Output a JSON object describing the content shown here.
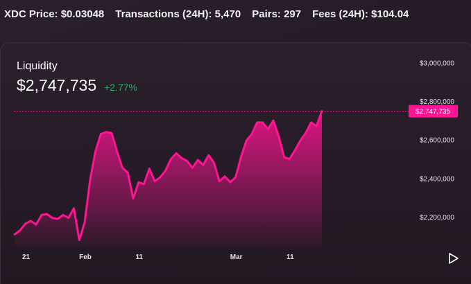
{
  "stats": [
    {
      "label": "XDC Price:",
      "value": "$0.03048"
    },
    {
      "label": "Transactions (24H):",
      "value": "5,470"
    },
    {
      "label": "Pairs:",
      "value": "297"
    },
    {
      "label": "Fees (24H):",
      "value": "$104.04"
    }
  ],
  "card": {
    "title": "Liquidity",
    "value": "$2,747,735",
    "change": "+2.77%"
  },
  "colors": {
    "line": "#ff1493",
    "positive": "#27ae60",
    "background": "#241a26"
  },
  "icons": {
    "play": "play-icon"
  },
  "chart_data": {
    "type": "area",
    "ylim": [
      2050000,
      3080000
    ],
    "y_ticks": [
      2200000,
      2400000,
      2600000,
      2800000,
      3000000
    ],
    "y_tick_labels": [
      "$2,200,000",
      "$2,400,000",
      "$2,600,000",
      "$2,800,000",
      "$3,000,000"
    ],
    "x_tick_labels": [
      {
        "label": "21",
        "index": 2
      },
      {
        "label": "Feb",
        "index": 13
      },
      {
        "label": "11",
        "index": 23
      },
      {
        "label": "Mar",
        "index": 41
      },
      {
        "label": "11",
        "index": 51
      }
    ],
    "current_value": 2747735,
    "current_label": "$2,747,735",
    "grid": false,
    "series": [
      {
        "values": [
          2110000,
          2130000,
          2165000,
          2180000,
          2160000,
          2210000,
          2215000,
          2195000,
          2190000,
          2210000,
          2195000,
          2245000,
          2080000,
          2170000,
          2390000,
          2540000,
          2630000,
          2640000,
          2635000,
          2540000,
          2455000,
          2430000,
          2295000,
          2380000,
          2370000,
          2450000,
          2385000,
          2405000,
          2440000,
          2500000,
          2530000,
          2505000,
          2490000,
          2455000,
          2495000,
          2470000,
          2520000,
          2480000,
          2385000,
          2410000,
          2380000,
          2405000,
          2510000,
          2595000,
          2630000,
          2690000,
          2690000,
          2655000,
          2700000,
          2620000,
          2510000,
          2500000,
          2545000,
          2595000,
          2635000,
          2690000,
          2670000,
          2747735
        ]
      }
    ]
  }
}
